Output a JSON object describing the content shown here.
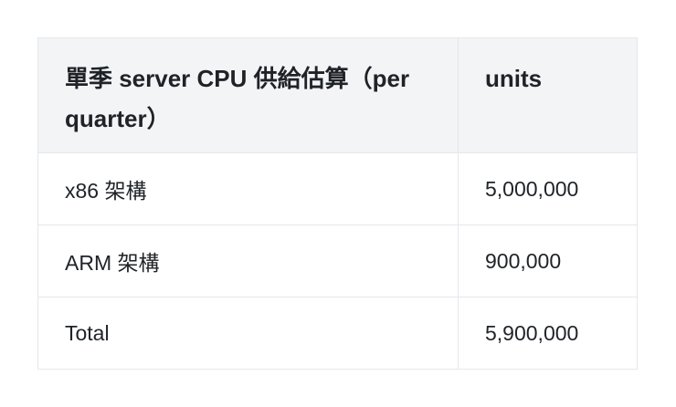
{
  "table": {
    "headers": [
      "單季 server CPU 供給估算（per quarter）",
      "units"
    ],
    "rows": [
      [
        "x86 架構",
        "5,000,000"
      ],
      [
        "ARM 架構",
        "900,000"
      ],
      [
        "Total",
        "5,900,000"
      ]
    ]
  }
}
